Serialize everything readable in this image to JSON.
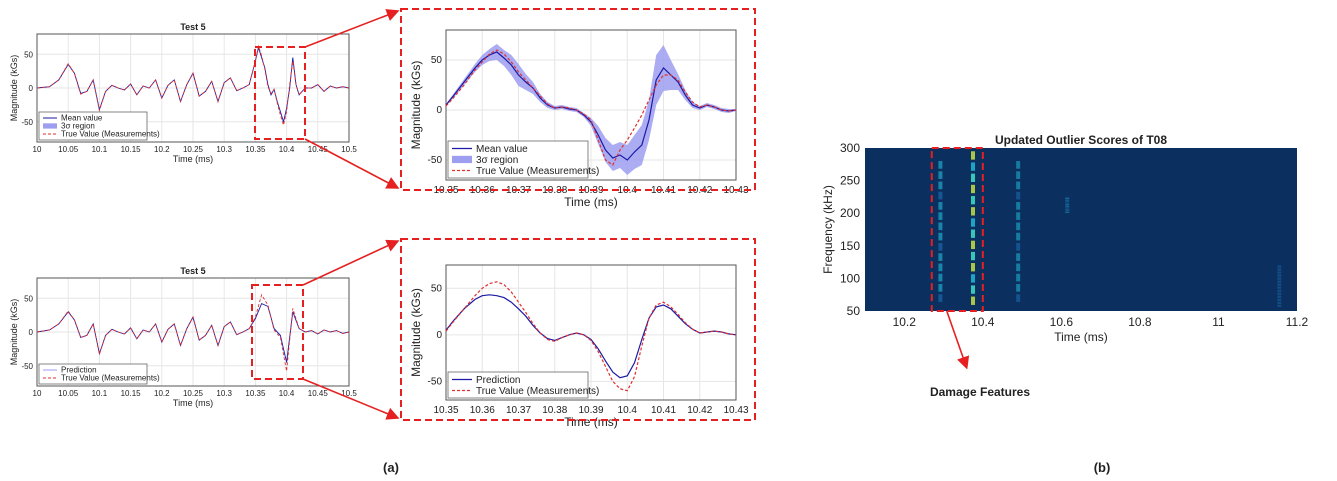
{
  "panel_labels": {
    "a": "(a)",
    "b": "(b)"
  },
  "annotation": "Damage Features",
  "colors": {
    "mean": "#1a1aa6",
    "band": "#9e9ef0",
    "true": "#e03030",
    "highlight": "#e62020",
    "heat_bg": "#0b2f5e"
  },
  "chart_data": [
    {
      "id": "top-small",
      "type": "line",
      "title": "Test 5",
      "xlabel": "Time (ms)",
      "ylabel": "Magnitude (kGs)",
      "xlim": [
        10,
        10.5
      ],
      "ylim": [
        -80,
        80
      ],
      "xticks": [
        "10",
        "10.05",
        "10.1",
        "10.15",
        "10.2",
        "10.25",
        "10.3",
        "10.35",
        "10.4",
        "10.45",
        "10.5"
      ],
      "yticks": [
        "-50",
        "0",
        "50"
      ],
      "legend": [
        "Mean value",
        "3σ region",
        "True Value (Measurements)"
      ],
      "legend_position": "bottom-left",
      "x": [
        10.0,
        10.02,
        10.035,
        10.05,
        10.06,
        10.07,
        10.08,
        10.09,
        10.1,
        10.11,
        10.12,
        10.13,
        10.14,
        10.15,
        10.16,
        10.17,
        10.18,
        10.19,
        10.2,
        10.21,
        10.22,
        10.23,
        10.24,
        10.25,
        10.26,
        10.27,
        10.28,
        10.29,
        10.3,
        10.31,
        10.32,
        10.33,
        10.34,
        10.35,
        10.355,
        10.36,
        10.365,
        10.37,
        10.375,
        10.38,
        10.385,
        10.39,
        10.395,
        10.4,
        10.405,
        10.41,
        10.415,
        10.42,
        10.43,
        10.44,
        10.45,
        10.46,
        10.47,
        10.48,
        10.49,
        10.5
      ],
      "series": [
        {
          "name": "Mean value",
          "values": [
            0,
            2,
            12,
            35,
            22,
            -8,
            -5,
            12,
            -32,
            -5,
            4,
            0,
            -3,
            6,
            -10,
            3,
            0,
            12,
            -15,
            4,
            12,
            -20,
            5,
            22,
            -12,
            -5,
            10,
            -20,
            8,
            15,
            -4,
            0,
            5,
            40,
            60,
            45,
            30,
            5,
            -10,
            -2,
            -20,
            -35,
            -50,
            -30,
            0,
            45,
            5,
            -10,
            0,
            0,
            5,
            -5,
            3,
            0,
            2,
            0
          ]
        },
        {
          "name": "True Value (Measurements)",
          "values": [
            0,
            2,
            12,
            36,
            22,
            -9,
            -5,
            12,
            -33,
            -5,
            4,
            0,
            -3,
            6,
            -10,
            3,
            0,
            12,
            -15,
            4,
            12,
            -20,
            5,
            22,
            -12,
            -5,
            10,
            -20,
            8,
            15,
            -4,
            0,
            5,
            40,
            62,
            48,
            28,
            2,
            -8,
            -2,
            -22,
            -40,
            -55,
            -35,
            5,
            40,
            5,
            -10,
            0,
            0,
            5,
            -5,
            3,
            0,
            2,
            0
          ]
        }
      ]
    },
    {
      "id": "top-zoom",
      "type": "line",
      "xlabel": "Time (ms)",
      "ylabel": "Magnitude (kGs)",
      "xlim": [
        10.35,
        10.43
      ],
      "ylim": [
        -70,
        80
      ],
      "xticks": [
        "10.35",
        "10.36",
        "10.37",
        "10.38",
        "10.39",
        "10.4",
        "10.41",
        "10.42",
        "10.43"
      ],
      "yticks": [
        "-50",
        "0",
        "50"
      ],
      "legend": [
        "Mean value",
        "3σ region",
        "True Value (Measurements)"
      ],
      "legend_position": "bottom-left",
      "x": [
        10.35,
        10.352,
        10.355,
        10.358,
        10.36,
        10.362,
        10.364,
        10.366,
        10.368,
        10.37,
        10.372,
        10.374,
        10.376,
        10.378,
        10.38,
        10.382,
        10.384,
        10.386,
        10.388,
        10.39,
        10.392,
        10.394,
        10.396,
        10.398,
        10.4,
        10.402,
        10.404,
        10.406,
        10.408,
        10.41,
        10.412,
        10.414,
        10.416,
        10.418,
        10.42,
        10.422,
        10.424,
        10.426,
        10.428,
        10.43
      ],
      "series": [
        {
          "name": "Mean value",
          "values": [
            5,
            14,
            28,
            42,
            50,
            55,
            58,
            52,
            45,
            35,
            28,
            22,
            12,
            5,
            2,
            3,
            1,
            0,
            -5,
            -12,
            -25,
            -40,
            -48,
            -45,
            -50,
            -42,
            -35,
            -10,
            30,
            42,
            35,
            28,
            15,
            5,
            2,
            5,
            3,
            0,
            -1,
            0
          ]
        },
        {
          "name": "3σ region upper",
          "values": [
            6,
            16,
            31,
            46,
            55,
            61,
            66,
            60,
            55,
            46,
            36,
            28,
            16,
            8,
            4,
            5,
            3,
            2,
            -3,
            -8,
            -16,
            -28,
            -35,
            -32,
            -35,
            -25,
            -15,
            10,
            55,
            65,
            50,
            36,
            20,
            8,
            4,
            7,
            5,
            2,
            1,
            1
          ]
        },
        {
          "name": "3σ region lower",
          "values": [
            4,
            12,
            25,
            38,
            45,
            49,
            50,
            44,
            35,
            24,
            20,
            16,
            8,
            2,
            0,
            1,
            -1,
            -2,
            -7,
            -16,
            -34,
            -52,
            -61,
            -58,
            -65,
            -59,
            -55,
            -30,
            5,
            19,
            20,
            20,
            10,
            2,
            0,
            3,
            1,
            -2,
            -3,
            -1
          ]
        },
        {
          "name": "True Value (Measurements)",
          "values": [
            4,
            12,
            25,
            40,
            48,
            56,
            60,
            56,
            48,
            38,
            30,
            22,
            14,
            6,
            2,
            3,
            2,
            0,
            -4,
            -10,
            -30,
            -50,
            -55,
            -40,
            -30,
            -18,
            -5,
            10,
            25,
            35,
            35,
            30,
            18,
            8,
            3,
            5,
            3,
            0,
            -1,
            0
          ]
        }
      ]
    },
    {
      "id": "bottom-small",
      "type": "line",
      "title": "Test 5",
      "xlabel": "Time (ms)",
      "ylabel": "Magnitude (kGs)",
      "xlim": [
        10,
        10.5
      ],
      "ylim": [
        -80,
        80
      ],
      "xticks": [
        "10",
        "10.05",
        "10.1",
        "10.15",
        "10.2",
        "10.25",
        "10.3",
        "10.35",
        "10.4",
        "10.45",
        "10.5"
      ],
      "yticks": [
        "-50",
        "0",
        "50"
      ],
      "legend": [
        "Prediction",
        "True Value (Measurements)"
      ],
      "legend_position": "bottom-left",
      "x": [
        10.0,
        10.02,
        10.035,
        10.05,
        10.06,
        10.07,
        10.08,
        10.09,
        10.1,
        10.11,
        10.12,
        10.13,
        10.14,
        10.15,
        10.16,
        10.17,
        10.18,
        10.19,
        10.2,
        10.21,
        10.22,
        10.23,
        10.24,
        10.25,
        10.26,
        10.27,
        10.28,
        10.29,
        10.3,
        10.31,
        10.32,
        10.33,
        10.34,
        10.35,
        10.36,
        10.37,
        10.38,
        10.39,
        10.4,
        10.41,
        10.42,
        10.43,
        10.44,
        10.45,
        10.46,
        10.47,
        10.48,
        10.49,
        10.5
      ],
      "series": [
        {
          "name": "Prediction",
          "values": [
            0,
            3,
            12,
            30,
            18,
            -8,
            -5,
            12,
            -32,
            -5,
            4,
            0,
            -3,
            6,
            -10,
            3,
            0,
            12,
            -15,
            4,
            12,
            -20,
            5,
            22,
            -12,
            -5,
            10,
            -20,
            8,
            15,
            -4,
            0,
            5,
            20,
            42,
            38,
            5,
            -5,
            -45,
            30,
            5,
            0,
            2,
            -3,
            3,
            0,
            2,
            -2,
            0
          ]
        },
        {
          "name": "True Value (Measurements)",
          "values": [
            0,
            3,
            12,
            31,
            18,
            -8,
            -5,
            12,
            -33,
            -5,
            4,
            0,
            -3,
            6,
            -10,
            3,
            0,
            12,
            -15,
            4,
            12,
            -20,
            5,
            22,
            -12,
            -5,
            10,
            -20,
            8,
            15,
            -4,
            0,
            5,
            22,
            55,
            40,
            3,
            -8,
            -58,
            35,
            5,
            0,
            2,
            -3,
            3,
            0,
            2,
            -2,
            0
          ]
        }
      ]
    },
    {
      "id": "bottom-zoom",
      "type": "line",
      "xlabel": "Time (ms)",
      "ylabel": "Magnitude (kGs)",
      "xlim": [
        10.35,
        10.43
      ],
      "ylim": [
        -70,
        75
      ],
      "xticks": [
        "10.35",
        "10.36",
        "10.37",
        "10.38",
        "10.39",
        "10.4",
        "10.41",
        "10.42",
        "10.43"
      ],
      "yticks": [
        "-50",
        "0",
        "50"
      ],
      "legend": [
        "Prediction",
        "True Value (Measurements)"
      ],
      "legend_position": "bottom-left",
      "x": [
        10.35,
        10.352,
        10.355,
        10.358,
        10.36,
        10.362,
        10.364,
        10.366,
        10.368,
        10.37,
        10.372,
        10.374,
        10.376,
        10.378,
        10.38,
        10.382,
        10.384,
        10.386,
        10.388,
        10.39,
        10.392,
        10.394,
        10.396,
        10.398,
        10.4,
        10.402,
        10.404,
        10.406,
        10.408,
        10.41,
        10.412,
        10.414,
        10.416,
        10.418,
        10.42,
        10.422,
        10.424,
        10.426,
        10.428,
        10.43
      ],
      "series": [
        {
          "name": "Prediction",
          "values": [
            5,
            15,
            28,
            38,
            42,
            43,
            42,
            40,
            35,
            28,
            20,
            10,
            2,
            -4,
            -6,
            -3,
            0,
            2,
            0,
            -5,
            -15,
            -28,
            -40,
            -46,
            -44,
            -30,
            -5,
            18,
            30,
            32,
            28,
            20,
            12,
            6,
            2,
            3,
            4,
            3,
            1,
            0
          ]
        },
        {
          "name": "True Value (Measurements)",
          "values": [
            4,
            14,
            28,
            42,
            50,
            55,
            57,
            54,
            46,
            35,
            24,
            12,
            2,
            -5,
            -7,
            -3,
            0,
            2,
            0,
            -6,
            -18,
            -34,
            -50,
            -58,
            -60,
            -45,
            -12,
            18,
            32,
            35,
            30,
            22,
            13,
            6,
            2,
            3,
            4,
            3,
            1,
            0
          ]
        }
      ]
    },
    {
      "id": "outlier-scores",
      "type": "heatmap",
      "title": "Updated Outlier Scores of T08",
      "xlabel": "Time (ms)",
      "ylabel": "Frequency (kHz)",
      "xlim": [
        10.1,
        11.2
      ],
      "ylim": [
        50,
        300
      ],
      "xticks": [
        "10.2",
        "10.4",
        "10.6",
        "10.8",
        "11",
        "11.2"
      ],
      "yticks": [
        "50",
        "100",
        "150",
        "200",
        "250",
        "300"
      ],
      "features": [
        {
          "t": 10.292,
          "f0": 60,
          "f1": 280,
          "level": 0.35
        },
        {
          "t": 10.375,
          "f0": 55,
          "f1": 295,
          "level": 0.75
        },
        {
          "t": 10.49,
          "f0": 60,
          "f1": 280,
          "level": 0.25
        },
        {
          "t": 10.615,
          "f0": 200,
          "f1": 225,
          "level": 0.15
        },
        {
          "t": 11.155,
          "f0": 55,
          "f1": 120,
          "level": 0.1
        }
      ],
      "highlight_range": [
        10.27,
        10.4
      ]
    }
  ]
}
